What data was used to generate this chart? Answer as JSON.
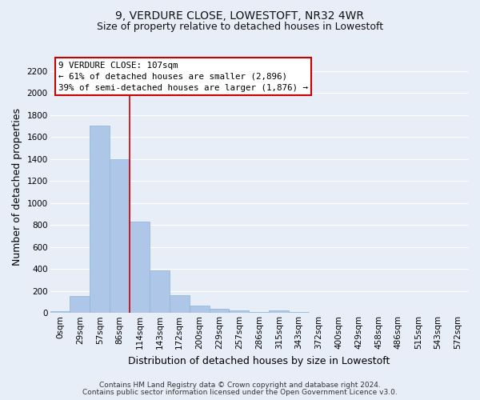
{
  "title": "9, VERDURE CLOSE, LOWESTOFT, NR32 4WR",
  "subtitle": "Size of property relative to detached houses in Lowestoft",
  "xlabel": "Distribution of detached houses by size in Lowestoft",
  "ylabel": "Number of detached properties",
  "bar_labels": [
    "0sqm",
    "29sqm",
    "57sqm",
    "86sqm",
    "114sqm",
    "143sqm",
    "172sqm",
    "200sqm",
    "229sqm",
    "257sqm",
    "286sqm",
    "315sqm",
    "343sqm",
    "372sqm",
    "400sqm",
    "429sqm",
    "458sqm",
    "486sqm",
    "515sqm",
    "543sqm",
    "572sqm"
  ],
  "bar_values": [
    15,
    155,
    1705,
    1400,
    830,
    385,
    165,
    68,
    40,
    22,
    10,
    22,
    10,
    5,
    0,
    0,
    0,
    0,
    0,
    0,
    0
  ],
  "bar_color": "#aec6e8",
  "bar_edge_color": "#8ab4d8",
  "vline_idx": 4,
  "vline_color": "#cc0000",
  "ylim": [
    0,
    2300
  ],
  "yticks": [
    0,
    200,
    400,
    600,
    800,
    1000,
    1200,
    1400,
    1600,
    1800,
    2000,
    2200
  ],
  "annotation_title": "9 VERDURE CLOSE: 107sqm",
  "annotation_line1": "← 61% of detached houses are smaller (2,896)",
  "annotation_line2": "39% of semi-detached houses are larger (1,876) →",
  "annotation_box_color": "#ffffff",
  "annotation_box_edge": "#cc0000",
  "footer_line1": "Contains HM Land Registry data © Crown copyright and database right 2024.",
  "footer_line2": "Contains public sector information licensed under the Open Government Licence v3.0.",
  "background_color": "#e8eef8",
  "grid_color": "#ffffff",
  "title_fontsize": 10,
  "subtitle_fontsize": 9,
  "axis_label_fontsize": 9,
  "tick_fontsize": 7.5,
  "footer_fontsize": 6.5
}
